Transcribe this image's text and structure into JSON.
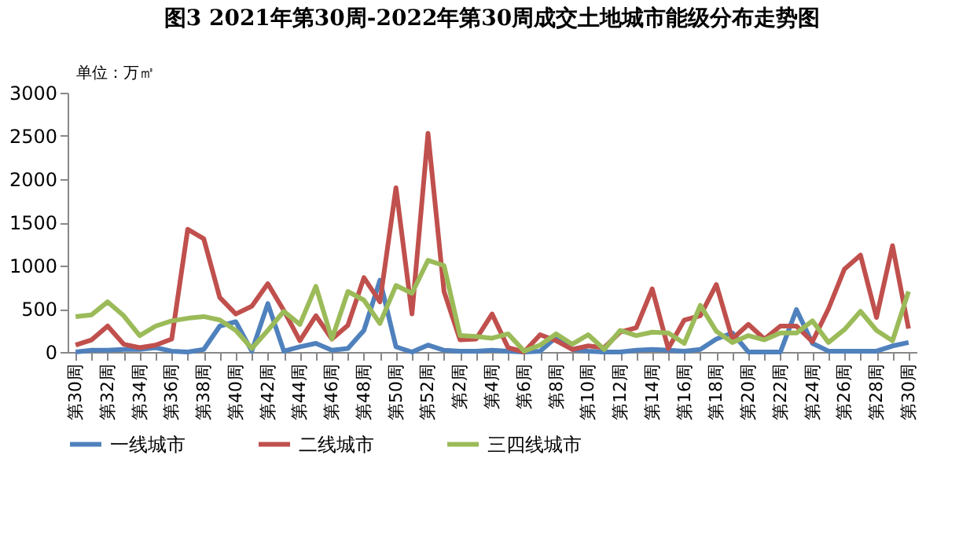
{
  "chart_data": {
    "type": "line",
    "title": "图3   2021年第30周-2022年第30周成交土地城市能级分布走势图",
    "ylabel": "单位：万㎡",
    "categories": [
      "第30周",
      null,
      "第32周",
      null,
      "第34周",
      null,
      "第36周",
      null,
      "第38周",
      null,
      "第40周",
      null,
      "第42周",
      null,
      "第44周",
      null,
      "第46周",
      null,
      "第48周",
      null,
      "第50周",
      null,
      "第52周",
      null,
      "第2周",
      null,
      "第4周",
      null,
      "第6周",
      null,
      "第8周",
      null,
      "第10周",
      null,
      "第12周",
      null,
      "第14周",
      null,
      "第16周",
      null,
      "第18周",
      null,
      "第20周",
      null,
      "第22周",
      null,
      "第24周",
      null,
      "第26周",
      null,
      "第28周",
      null,
      "第30周"
    ],
    "series": [
      {
        "name": "一线城市",
        "color": "#4f81bd",
        "values": [
          0,
          20,
          20,
          30,
          30,
          50,
          10,
          0,
          30,
          300,
          350,
          10,
          560,
          10,
          60,
          100,
          20,
          40,
          250,
          830,
          60,
          0,
          80,
          20,
          10,
          10,
          20,
          10,
          0,
          10,
          170,
          30,
          10,
          0,
          0,
          20,
          30,
          20,
          10,
          30,
          150,
          220,
          0,
          0,
          0,
          490,
          100,
          10,
          10,
          10,
          10,
          70,
          110
        ]
      },
      {
        "name": "二线城市",
        "color": "#c0504d",
        "values": [
          80,
          140,
          300,
          90,
          50,
          80,
          150,
          1420,
          1310,
          630,
          440,
          530,
          790,
          480,
          130,
          420,
          150,
          310,
          860,
          580,
          1900,
          440,
          2530,
          700,
          140,
          150,
          440,
          50,
          0,
          200,
          130,
          30,
          70,
          50,
          230,
          280,
          730,
          40,
          370,
          420,
          780,
          150,
          320,
          150,
          300,
          300,
          120,
          500,
          960,
          1120,
          400,
          1230,
          270
        ]
      },
      {
        "name": "三四线城市",
        "color": "#9bbb59",
        "values": [
          410,
          430,
          580,
          420,
          190,
          300,
          360,
          390,
          410,
          370,
          250,
          40,
          250,
          470,
          320,
          760,
          150,
          700,
          600,
          330,
          770,
          680,
          1060,
          1000,
          190,
          180,
          160,
          210,
          10,
          80,
          210,
          90,
          200,
          30,
          250,
          190,
          230,
          220,
          100,
          540,
          240,
          110,
          190,
          140,
          220,
          220,
          360,
          110,
          260,
          470,
          250,
          130,
          700
        ]
      }
    ],
    "ylim": [
      0,
      3000
    ],
    "yticks": [
      0,
      500,
      1000,
      1500,
      2000,
      2500,
      3000
    ],
    "grid": false,
    "legend": "bottom",
    "marker": "none",
    "line_style": "solid"
  }
}
